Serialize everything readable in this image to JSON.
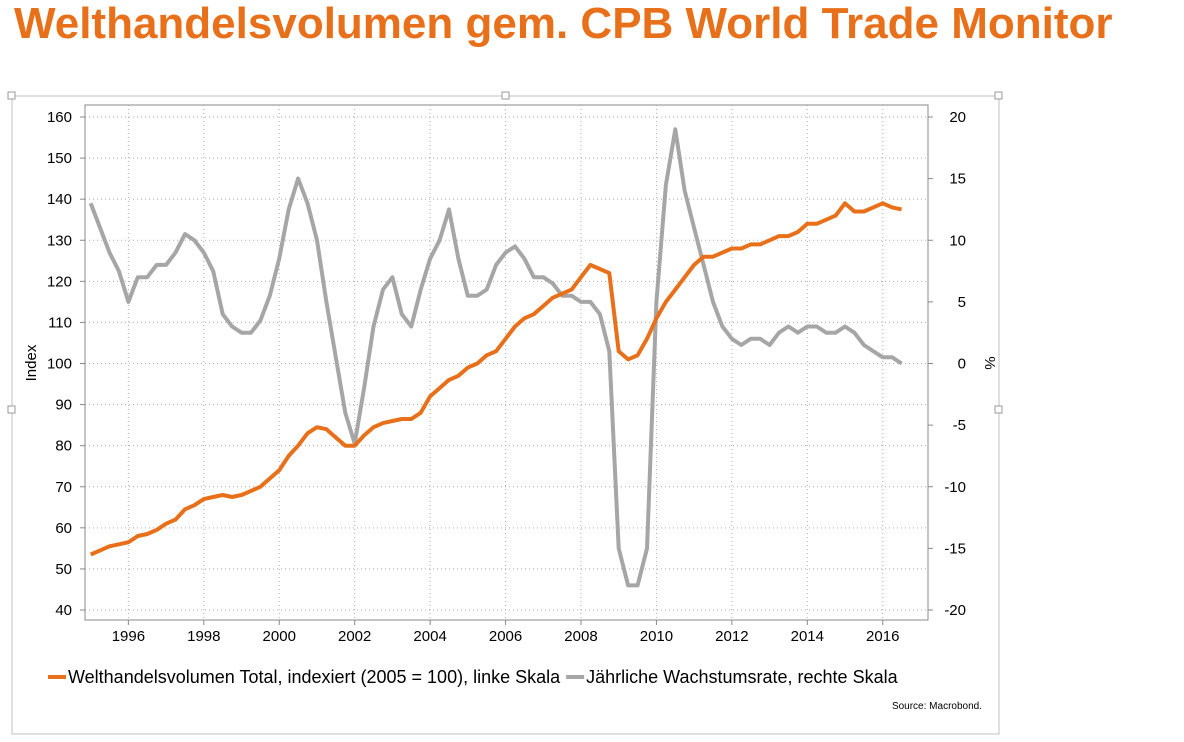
{
  "chart_data": {
    "type": "line",
    "title": "Welthandelsvolumen gem. CPB World Trade Monitor",
    "ylabel": "Index",
    "y2label": "%",
    "source": "Source: Macrobond.",
    "x": [
      1995.0,
      1995.25,
      1995.5,
      1995.75,
      1996.0,
      1996.25,
      1996.5,
      1996.75,
      1997.0,
      1997.25,
      1997.5,
      1997.75,
      1998.0,
      1998.25,
      1998.5,
      1998.75,
      1999.0,
      1999.25,
      1999.5,
      1999.75,
      2000.0,
      2000.25,
      2000.5,
      2000.75,
      2001.0,
      2001.25,
      2001.5,
      2001.75,
      2002.0,
      2002.25,
      2002.5,
      2002.75,
      2003.0,
      2003.25,
      2003.5,
      2003.75,
      2004.0,
      2004.25,
      2004.5,
      2004.75,
      2005.0,
      2005.25,
      2005.5,
      2005.75,
      2006.0,
      2006.25,
      2006.5,
      2006.75,
      2007.0,
      2007.25,
      2007.5,
      2007.75,
      2008.0,
      2008.25,
      2008.5,
      2008.75,
      2009.0,
      2009.25,
      2009.5,
      2009.75,
      2010.0,
      2010.25,
      2010.5,
      2010.75,
      2011.0,
      2011.25,
      2011.5,
      2011.75,
      2012.0,
      2012.25,
      2012.5,
      2012.75,
      2013.0,
      2013.25,
      2013.5,
      2013.75,
      2014.0,
      2014.25,
      2014.5,
      2014.75,
      2015.0,
      2015.25,
      2015.5,
      2015.75,
      2016.0,
      2016.25,
      2016.5
    ],
    "series": [
      {
        "name": "Welthandelsvolumen Total, indexiert (2005 = 100), linke Skala",
        "color": "#e8701a",
        "values": [
          53.5,
          54.5,
          55.5,
          56,
          56.5,
          58,
          58.5,
          59.5,
          61,
          62,
          64.5,
          65.5,
          67,
          67.5,
          68,
          67.5,
          68,
          69,
          70,
          72,
          74,
          77.5,
          80,
          83,
          84.5,
          84,
          82,
          80,
          80,
          82.5,
          84.5,
          85.5,
          86,
          86.5,
          86.5,
          88,
          92,
          94,
          96,
          97,
          99,
          100,
          102,
          103,
          106,
          109,
          111,
          112,
          114,
          116,
          117,
          118,
          121,
          124,
          123,
          122,
          103,
          101,
          102,
          106,
          111,
          115,
          118,
          121,
          124,
          126,
          126,
          127,
          128,
          128,
          129,
          129,
          130,
          131,
          131,
          132,
          134,
          134,
          135,
          136,
          139,
          137,
          137,
          138,
          139,
          138,
          137.5
        ]
      },
      {
        "name": "Jährliche Wachstumsrate, rechte Skala",
        "color": "#a6a6a6",
        "axis": "y2",
        "values": [
          13,
          11,
          9,
          7.5,
          5,
          7,
          7,
          8,
          8,
          9,
          10.5,
          10,
          9,
          7.5,
          4,
          3,
          2.5,
          2.5,
          3.5,
          5.5,
          8.5,
          12.5,
          15,
          13,
          10,
          5,
          0.5,
          -4,
          -6.5,
          -2,
          3,
          6,
          7,
          4,
          3,
          6,
          8.5,
          10,
          12.5,
          8.5,
          5.5,
          5.5,
          6,
          8,
          9,
          9.5,
          8.5,
          7,
          7,
          6.5,
          5.5,
          5.5,
          5,
          5,
          4,
          1,
          -15,
          -18,
          -18,
          -15,
          5,
          14.5,
          19,
          14,
          11,
          8,
          5,
          3,
          2,
          1.5,
          2,
          2,
          1.5,
          2.5,
          3,
          2.5,
          3,
          3,
          2.5,
          2.5,
          3,
          2.5,
          1.5,
          1,
          0.5,
          0.5,
          0
        ]
      }
    ],
    "xlim": [
      1994.85,
      2017.2
    ],
    "xticks": [
      1996,
      1998,
      2000,
      2002,
      2004,
      2006,
      2008,
      2010,
      2012,
      2014,
      2016
    ],
    "ylim": [
      40,
      160
    ],
    "yticks": [
      40,
      50,
      60,
      70,
      80,
      90,
      100,
      110,
      120,
      130,
      140,
      150,
      160
    ],
    "y2lim": [
      -20,
      20
    ],
    "y2ticks": [
      -20,
      -15,
      -10,
      -5,
      0,
      5,
      10,
      15,
      20
    ],
    "grid": true
  }
}
